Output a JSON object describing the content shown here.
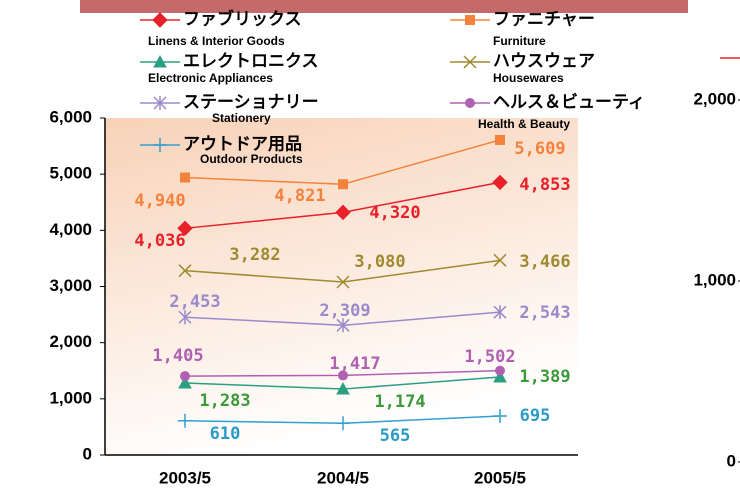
{
  "chart_data": [
    {
      "type": "line",
      "categories": [
        "2003/5",
        "2004/5",
        "2005/5"
      ],
      "ylim": [
        0,
        6000
      ],
      "yticks": [
        0,
        {
          "value": 1000,
          "label": "1,000"
        },
        {
          "value": 2000,
          "label": "2,000"
        },
        {
          "value": 3000,
          "label": "3,000"
        },
        {
          "value": 4000,
          "label": "4,000"
        },
        {
          "value": 5000,
          "label": "5,000"
        },
        {
          "value": 6000,
          "label": "6,000"
        }
      ],
      "series": [
        {
          "name": "ファブリックス",
          "name_en": "Linens & Interior Goods",
          "color": "#e8202a",
          "label_color": "#e8202a",
          "marker": "diamond",
          "values": [
            4036,
            4320,
            4853
          ],
          "value_labels": [
            "4,036",
            "4,320",
            "4,853"
          ]
        },
        {
          "name": "ファニチャー",
          "name_en": "Furniture",
          "color": "#f5823c",
          "label_color": "#f5823c",
          "marker": "square",
          "values": [
            4940,
            4821,
            5609
          ],
          "value_labels": [
            "4,940",
            "4,821",
            "5,609"
          ]
        },
        {
          "name": "エレクトロニクス",
          "name_en": "Electronic Appliances",
          "color": "#2aa080",
          "label_color": "#3a9a3a",
          "marker": "triangle",
          "values": [
            1283,
            1174,
            1389
          ],
          "value_labels": [
            "1,283",
            "1,174",
            "1,389"
          ]
        },
        {
          "name": "ハウスウェア",
          "name_en": "Housewares",
          "color": "#a08a30",
          "label_color": "#a08a30",
          "marker": "x",
          "values": [
            3282,
            3080,
            3466
          ],
          "value_labels": [
            "3,282",
            "3,080",
            "3,466"
          ]
        },
        {
          "name": "ステーショナリー",
          "name_en": "Stationery",
          "color": "#9a8acc",
          "label_color": "#9a8acc",
          "marker": "star",
          "values": [
            2453,
            2309,
            2543
          ],
          "value_labels": [
            "2,453",
            "2,309",
            "2,543"
          ]
        },
        {
          "name": "ヘルス＆ビューティ",
          "name_en": "Health & Beauty",
          "color": "#b060b0",
          "label_color": "#b060b0",
          "marker": "circle",
          "values": [
            1405,
            1417,
            1502
          ],
          "value_labels": [
            "1,405",
            "1,417",
            "1,502"
          ]
        },
        {
          "name": "アウトドア用品",
          "name_en": "Outdoor Products",
          "color": "#30a0d0",
          "label_color": "#2a9ac8",
          "marker": "plus",
          "values": [
            610,
            565,
            695
          ],
          "value_labels": [
            "610",
            "565",
            "695"
          ]
        }
      ]
    },
    {
      "type": "line",
      "ylim": [
        0,
        2000
      ],
      "yticks": [
        0,
        {
          "value": 1000,
          "label": "1,000"
        },
        {
          "value": 2000,
          "label": "2,000"
        }
      ]
    }
  ]
}
